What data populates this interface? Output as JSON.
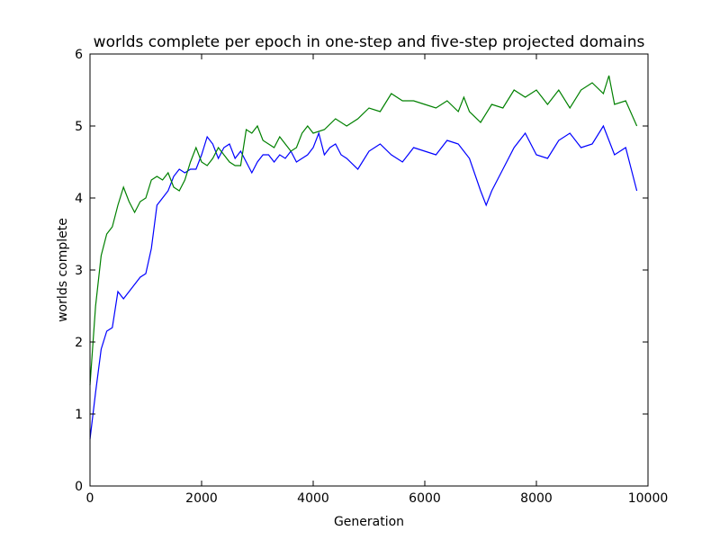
{
  "chart_data": {
    "type": "line",
    "title": "worlds complete per epoch in one-step and five-step projected domains",
    "xlabel": "Generation",
    "ylabel": "worlds complete",
    "xlim": [
      0,
      10000
    ],
    "ylim": [
      0,
      6
    ],
    "xticks": [
      0,
      2000,
      4000,
      6000,
      8000,
      10000
    ],
    "yticks": [
      0,
      1,
      2,
      3,
      4,
      5,
      6
    ],
    "grid": false,
    "series": [
      {
        "color": "#0000ff",
        "x": [
          0,
          100,
          200,
          300,
          400,
          500,
          600,
          700,
          800,
          900,
          1000,
          1100,
          1200,
          1300,
          1400,
          1500,
          1600,
          1700,
          1800,
          1900,
          2000,
          2100,
          2200,
          2300,
          2400,
          2500,
          2600,
          2700,
          2800,
          2900,
          3000,
          3100,
          3200,
          3300,
          3400,
          3500,
          3600,
          3700,
          3800,
          3900,
          4000,
          4100,
          4200,
          4300,
          4400,
          4500,
          4600,
          4800,
          5000,
          5200,
          5400,
          5600,
          5800,
          6000,
          6200,
          6400,
          6600,
          6800,
          7000,
          7100,
          7200,
          7400,
          7600,
          7800,
          8000,
          8200,
          8400,
          8600,
          8800,
          9000,
          9200,
          9400,
          9600,
          9800
        ],
        "values": [
          0.65,
          1.3,
          1.9,
          2.15,
          2.2,
          2.7,
          2.6,
          2.7,
          2.8,
          2.9,
          2.95,
          3.3,
          3.9,
          4.0,
          4.1,
          4.3,
          4.4,
          4.35,
          4.4,
          4.4,
          4.6,
          4.85,
          4.75,
          4.55,
          4.7,
          4.75,
          4.55,
          4.65,
          4.5,
          4.35,
          4.5,
          4.6,
          4.6,
          4.5,
          4.6,
          4.55,
          4.65,
          4.5,
          4.55,
          4.6,
          4.7,
          4.9,
          4.6,
          4.7,
          4.75,
          4.6,
          4.55,
          4.4,
          4.65,
          4.75,
          4.6,
          4.5,
          4.7,
          4.65,
          4.6,
          4.8,
          4.75,
          4.55,
          4.1,
          3.9,
          4.1,
          4.4,
          4.7,
          4.9,
          4.6,
          4.55,
          4.8,
          4.9,
          4.7,
          4.75,
          5.0,
          4.6,
          4.7,
          4.1
        ]
      },
      {
        "color": "#008000",
        "x": [
          0,
          100,
          200,
          300,
          400,
          500,
          600,
          700,
          800,
          900,
          1000,
          1100,
          1200,
          1300,
          1400,
          1500,
          1600,
          1700,
          1800,
          1900,
          2000,
          2100,
          2200,
          2300,
          2400,
          2500,
          2600,
          2700,
          2800,
          2900,
          3000,
          3100,
          3200,
          3300,
          3400,
          3500,
          3600,
          3700,
          3800,
          3900,
          4000,
          4200,
          4400,
          4600,
          4800,
          5000,
          5200,
          5400,
          5600,
          5800,
          6000,
          6200,
          6400,
          6600,
          6700,
          6800,
          7000,
          7200,
          7400,
          7600,
          7800,
          8000,
          8200,
          8400,
          8600,
          8800,
          9000,
          9200,
          9300,
          9400,
          9600,
          9800
        ],
        "values": [
          1.4,
          2.5,
          3.2,
          3.5,
          3.6,
          3.9,
          4.15,
          3.95,
          3.8,
          3.95,
          4.0,
          4.25,
          4.3,
          4.25,
          4.35,
          4.15,
          4.1,
          4.25,
          4.5,
          4.7,
          4.5,
          4.45,
          4.55,
          4.7,
          4.6,
          4.5,
          4.45,
          4.45,
          4.95,
          4.9,
          5.0,
          4.8,
          4.75,
          4.7,
          4.85,
          4.75,
          4.65,
          4.7,
          4.9,
          5.0,
          4.9,
          4.95,
          5.1,
          5.0,
          5.1,
          5.25,
          5.2,
          5.45,
          5.35,
          5.35,
          5.3,
          5.25,
          5.35,
          5.2,
          5.4,
          5.2,
          5.05,
          5.3,
          5.25,
          5.5,
          5.4,
          5.5,
          5.3,
          5.5,
          5.25,
          5.5,
          5.6,
          5.45,
          5.7,
          5.3,
          5.35,
          5.0
        ]
      }
    ]
  }
}
